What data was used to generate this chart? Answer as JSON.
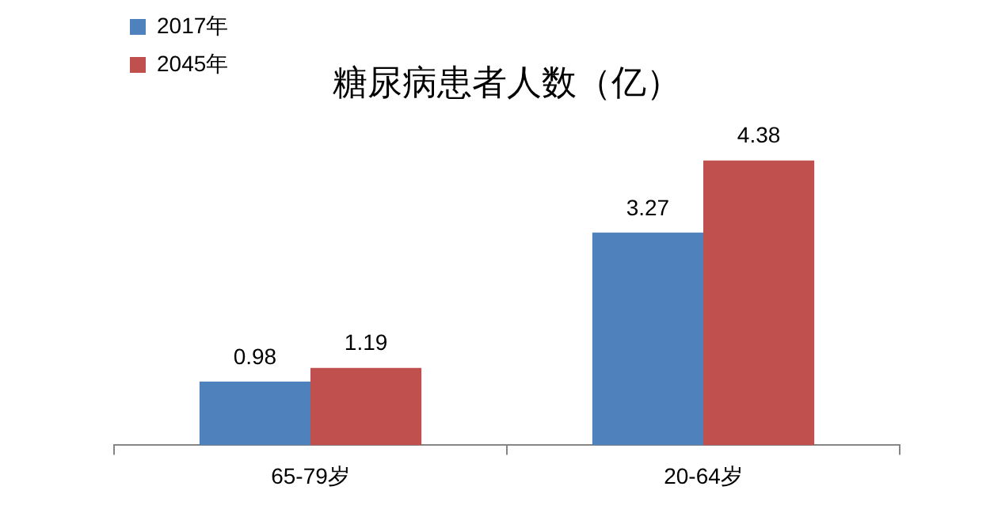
{
  "chart_data": {
    "type": "bar",
    "title": "糖尿病患者人数（亿）",
    "categories": [
      "65-79岁",
      "20-64岁"
    ],
    "series": [
      {
        "name": "2017年",
        "color": "#4f81bd",
        "values": [
          0.98,
          3.27
        ]
      },
      {
        "name": "2045年",
        "color": "#c0504d",
        "values": [
          1.19,
          4.38
        ]
      }
    ],
    "data_labels": true,
    "legend": "top left",
    "tick_labels": "x",
    "grid": false
  }
}
